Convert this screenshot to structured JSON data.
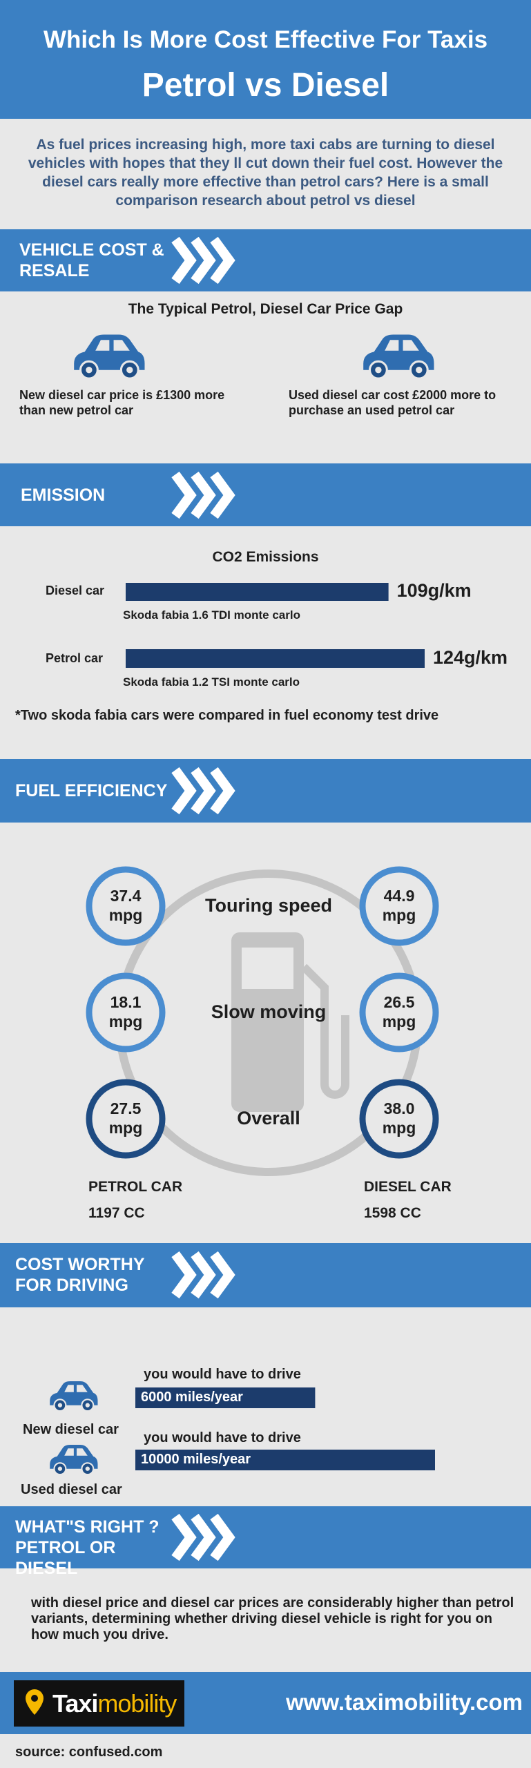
{
  "header": {
    "title": "Which Is More Cost Effective For Taxis",
    "subtitle": "Petrol vs Diesel"
  },
  "intro": "As fuel prices increasing high, more taxi cabs are turning to diesel vehicles with hopes that they ll cut down their fuel cost. However the diesel cars really more effective than petrol cars? Here is a small comparison research about petrol vs diesel",
  "vehicle_cost": {
    "heading": "VEHICLE COST & RESALE",
    "subheading": "The Typical Petrol, Diesel Car Price Gap",
    "items": [
      "New diesel car price is £1300 more than new petrol car",
      "Used diesel car cost £2000 more to purchase an used petrol car"
    ]
  },
  "emission": {
    "heading": "EMISSION",
    "chart_title": "CO2 Emissions",
    "bars": [
      {
        "label": "Diesel car",
        "value": 109,
        "value_label": "109g/km",
        "model": "Skoda fabia 1.6 TDI monte carlo"
      },
      {
        "label": "Petrol car",
        "value": 124,
        "value_label": "124g/km",
        "model": "Skoda fabia 1.2 TSI monte carlo"
      }
    ],
    "note": "*Two skoda fabia cars were compared in fuel economy test drive"
  },
  "fuel_efficiency": {
    "heading": "FUEL EFFICIENCY",
    "rows": [
      {
        "label": "Touring speed",
        "petrol": "37.4 mpg",
        "diesel": "44.9 mpg"
      },
      {
        "label": "Slow moving",
        "petrol": "18.1 mpg",
        "diesel": "26.5 mpg"
      },
      {
        "label": "Overall",
        "petrol": "27.5 mpg",
        "diesel": "38.0 mpg"
      }
    ],
    "petrol_car": {
      "name": "PETROL CAR",
      "engine": "1197 CC"
    },
    "diesel_car": {
      "name": "DIESEL CAR",
      "engine": "1598 CC"
    }
  },
  "cost_worthy": {
    "heading": "COST WORTHY FOR DRIVING",
    "items": [
      {
        "label": "New diesel car",
        "caption": "you would have to drive",
        "value": 6000,
        "value_label": "6000 miles/year"
      },
      {
        "label": "Used diesel car",
        "caption": "you would have to drive",
        "value": 10000,
        "value_label": "10000 miles/year"
      }
    ]
  },
  "conclusion": {
    "heading": "WHAT\"S RIGHT ? PETROL OR DIESEL",
    "text": "with diesel price and diesel car prices are considerably higher than petrol variants, determining whether driving diesel vehicle is right for you on how much you drive."
  },
  "footer": {
    "logo_prefix": "Taxi",
    "logo_suffix": "mobility",
    "url": "www.taximobility.com",
    "source": "source: confused.com"
  }
}
